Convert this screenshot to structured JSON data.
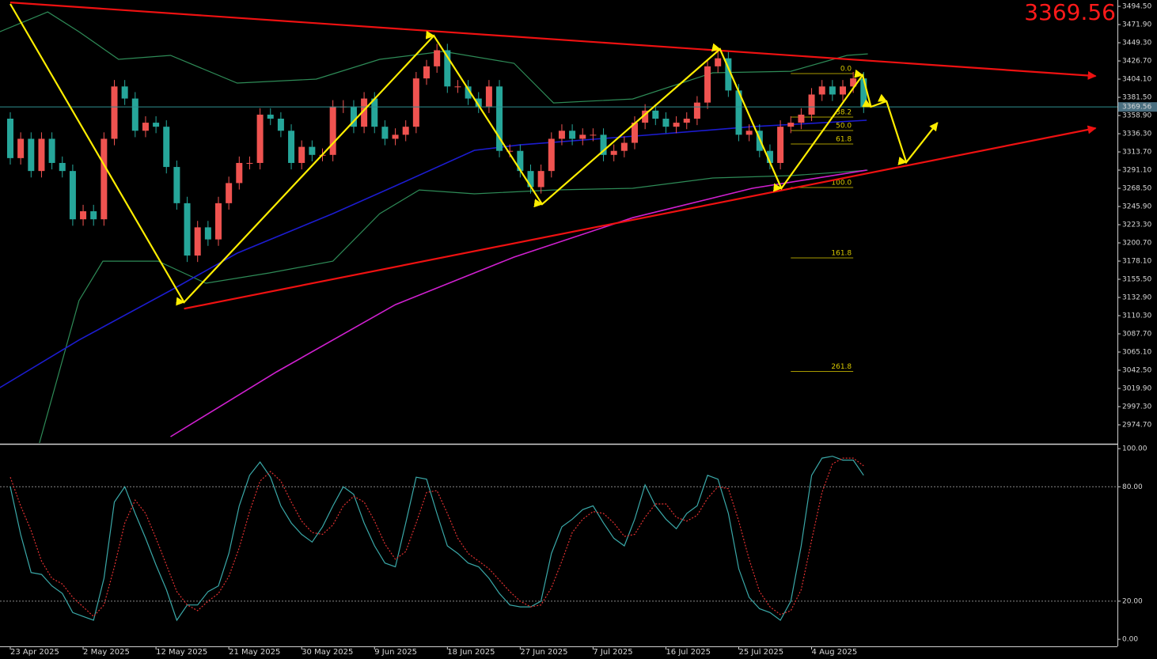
{
  "chart_data": {
    "type": "candlestick",
    "categories": [
      "23 Apr 2025",
      null,
      null,
      null,
      null,
      null,
      null,
      "2 May 2025",
      null,
      null,
      null,
      null,
      null,
      null,
      "12 May 2025",
      null,
      null,
      null,
      null,
      null,
      null,
      "21 May 2025",
      null,
      null,
      null,
      null,
      null,
      null,
      "30 May 2025",
      null,
      null,
      null,
      null,
      null,
      null,
      "9 Jun 2025",
      null,
      null,
      null,
      null,
      null,
      null,
      "18 Jun 2025",
      null,
      null,
      null,
      null,
      null,
      null,
      "27 Jun 2025",
      null,
      null,
      null,
      null,
      null,
      null,
      "7 Jul 2025",
      null,
      null,
      null,
      null,
      null,
      null,
      "16 Jul 2025",
      null,
      null,
      null,
      null,
      null,
      null,
      "25 Jul 2025",
      null,
      null,
      null,
      null,
      null,
      null,
      "4 Aug 2025",
      null,
      null,
      null,
      null,
      null
    ],
    "open": [
      3355,
      3306,
      3330,
      3290,
      3330,
      3300,
      3290,
      3230,
      3240,
      3230,
      3330,
      3395,
      3380,
      3340,
      3350,
      3345,
      3295,
      3250,
      3185,
      3220,
      3205,
      3250,
      3275,
      3300,
      3300,
      3360,
      3355,
      3340,
      3300,
      3320,
      3310,
      3310,
      3370,
      3370,
      3345,
      3380,
      3345,
      3330,
      3335,
      3345,
      3405,
      3420,
      3440,
      3395,
      3395,
      3380,
      3370,
      3395,
      3315,
      3315,
      3290,
      3270,
      3290,
      3330,
      3340,
      3330,
      3335,
      3335,
      3310,
      3315,
      3325,
      3350,
      3365,
      3355,
      3345,
      3350,
      3355,
      3375,
      3420,
      3430,
      3390,
      3335,
      3340,
      3315,
      3300,
      3345,
      3350,
      3360,
      3385,
      3395,
      3385,
      3395,
      3405
    ],
    "high": [
      3363,
      3338,
      3338,
      3338,
      3338,
      3308,
      3298,
      3248,
      3248,
      3338,
      3403,
      3403,
      3388,
      3358,
      3358,
      3353,
      3303,
      3258,
      3228,
      3228,
      3258,
      3283,
      3308,
      3308,
      3368,
      3368,
      3363,
      3348,
      3328,
      3328,
      3318,
      3378,
      3378,
      3378,
      3388,
      3388,
      3353,
      3343,
      3353,
      3413,
      3428,
      3448,
      3448,
      3403,
      3403,
      3388,
      3403,
      3403,
      3323,
      3323,
      3298,
      3298,
      3338,
      3348,
      3348,
      3343,
      3343,
      3343,
      3323,
      3333,
      3358,
      3373,
      3373,
      3363,
      3358,
      3363,
      3383,
      3428,
      3438,
      3438,
      3398,
      3348,
      3348,
      3323,
      3353,
      3358,
      3368,
      3393,
      3403,
      3403,
      3403,
      3413,
      3413
    ],
    "low": [
      3298,
      3298,
      3282,
      3282,
      3292,
      3282,
      3222,
      3222,
      3222,
      3222,
      3322,
      3372,
      3332,
      3332,
      3337,
      3287,
      3242,
      3177,
      3177,
      3197,
      3197,
      3242,
      3267,
      3292,
      3292,
      3347,
      3332,
      3292,
      3292,
      3302,
      3302,
      3302,
      3362,
      3337,
      3337,
      3337,
      3322,
      3322,
      3327,
      3337,
      3397,
      3412,
      3387,
      3387,
      3372,
      3362,
      3362,
      3307,
      3307,
      3282,
      3262,
      3262,
      3282,
      3322,
      3322,
      3322,
      3327,
      3302,
      3302,
      3307,
      3317,
      3342,
      3347,
      3337,
      3337,
      3342,
      3347,
      3367,
      3412,
      3382,
      3327,
      3327,
      3307,
      3292,
      3292,
      3337,
      3342,
      3352,
      3377,
      3377,
      3377,
      3387,
      3362
    ],
    "close": [
      3306,
      3330,
      3290,
      3330,
      3300,
      3290,
      3230,
      3240,
      3230,
      3330,
      3395,
      3380,
      3340,
      3350,
      3345,
      3295,
      3250,
      3185,
      3220,
      3205,
      3250,
      3275,
      3300,
      3300,
      3360,
      3355,
      3340,
      3300,
      3320,
      3310,
      3310,
      3370,
      3370,
      3345,
      3380,
      3345,
      3330,
      3335,
      3345,
      3405,
      3420,
      3440,
      3395,
      3395,
      3380,
      3370,
      3395,
      3315,
      3315,
      3290,
      3270,
      3290,
      3330,
      3340,
      3330,
      3335,
      3335,
      3310,
      3315,
      3325,
      3350,
      3365,
      3355,
      3345,
      3350,
      3355,
      3375,
      3420,
      3430,
      3390,
      3335,
      3340,
      3315,
      3300,
      3345,
      3350,
      3360,
      3385,
      3395,
      3385,
      3395,
      3405,
      3370
    ],
    "up_color": "#ef5350",
    "down_color": "#26a69a",
    "ylim": [
      2952.1,
      3502.4
    ],
    "yticks": [
      {
        "value": 3494.5,
        "label": "3494.50"
      },
      {
        "value": 3471.9,
        "label": "3471.90"
      },
      {
        "value": 3449.3,
        "label": "3449.30"
      },
      {
        "value": 3426.7,
        "label": "3426.70"
      },
      {
        "value": 3404.1,
        "label": "3404.10"
      },
      {
        "value": 3381.5,
        "label": "3381.50"
      },
      {
        "value": 3358.9,
        "label": "3358.90"
      },
      {
        "value": 3336.3,
        "label": "3336.30"
      },
      {
        "value": 3313.7,
        "label": "3313.70"
      },
      {
        "value": 3291.1,
        "label": "3291.10"
      },
      {
        "value": 3268.5,
        "label": "3268.50"
      },
      {
        "value": 3245.9,
        "label": "3245.90"
      },
      {
        "value": 3223.3,
        "label": "3223.30"
      },
      {
        "value": 3200.7,
        "label": "3200.70"
      },
      {
        "value": 3178.1,
        "label": "3178.10"
      },
      {
        "value": 3155.5,
        "label": "3155.50"
      },
      {
        "value": 3132.9,
        "label": "3132.90"
      },
      {
        "value": 3110.3,
        "label": "3110.30"
      },
      {
        "value": 3087.7,
        "label": "3087.70"
      },
      {
        "value": 3065.1,
        "label": "3065.10"
      },
      {
        "value": 3042.5,
        "label": "3042.50"
      },
      {
        "value": 3019.9,
        "label": "3019.90"
      },
      {
        "value": 2997.3,
        "label": "2997.30"
      },
      {
        "value": 2974.7,
        "label": "2974.70"
      }
    ],
    "last_price": 3369.56,
    "overlays": [
      {
        "color": "#2e8b57",
        "width": 1.2,
        "x": [
          -1,
          3.6,
          6.6,
          10.4,
          15.4,
          21.8,
          29.4,
          35.5,
          41.6,
          48.4,
          52.2,
          59.8,
          67.5,
          75,
          80.4,
          82.4
        ],
        "values": [
          3463,
          3487.6,
          3463,
          3428.7,
          3433.6,
          3399.2,
          3404.1,
          3428.7,
          3438.5,
          3423.8,
          3374.6,
          3379.5,
          3412,
          3413.9,
          3433.6,
          3435.5
        ]
      },
      {
        "color": "#2e8b57",
        "width": 1.2,
        "x": [
          2.8,
          6.6,
          8.9,
          14.2,
          18.8,
          24.9,
          31,
          35.5,
          39.3,
          44.6,
          52.2,
          59.8,
          67.5,
          75,
          82.4
        ],
        "values": [
          2952.1,
          3129,
          3178,
          3178,
          3150.6,
          3163.4,
          3178,
          3237,
          3266.5,
          3261.6,
          3266.5,
          3268.5,
          3281.3,
          3284.2,
          3291
        ]
      },
      {
        "color": "#1c1cd0",
        "width": 1.6,
        "x": [
          -1,
          6.6,
          15.7,
          21.8,
          31,
          37,
          44.6,
          49,
          60,
          71.3,
          82.3
        ],
        "values": [
          3020.9,
          3080,
          3143.7,
          3187.9,
          3237.1,
          3271.5,
          3315.7,
          3322.5,
          3333.4,
          3345.1,
          3353
        ]
      },
      {
        "color": "#d020d0",
        "width": 1.6,
        "x": [
          15.4,
          25.6,
          37,
          48.4,
          59.8,
          71.3,
          82.3
        ],
        "values": [
          2960,
          3040.5,
          3124,
          3183,
          3232,
          3268.5,
          3291
        ]
      },
      {
        "color": "#ee1111",
        "width": 2.2,
        "arrow": true,
        "x": [
          0,
          104.3
        ],
        "values": [
          3499.4,
          3408
        ]
      },
      {
        "color": "#ee1111",
        "width": 2.2,
        "arrow": true,
        "x": [
          16.7,
          104.3
        ],
        "values": [
          3119,
          3343.2
        ]
      },
      {
        "color": "#ffee00",
        "width": 2.2,
        "arrow": true,
        "x": [
          0,
          16.7,
          40.7,
          51.1,
          68.2,
          74.1,
          81.9,
          82.7,
          84.2,
          86.1,
          89.1
        ],
        "values": [
          3497.5,
          3127,
          3458.1,
          3248.8,
          3441.4,
          3268.5,
          3409,
          3369.7,
          3376.6,
          3300.9,
          3350
        ]
      }
    ],
    "fib": {
      "color": "#a89a00",
      "x": [
        75,
        81
      ],
      "levels": [
        {
          "level": {
            "value": 0,
            "label": "0.0"
          },
          "price": 3411
        },
        {
          "level": 38.2,
          "price": 3357
        },
        {
          "level": {
            "value": 50,
            "label": "50.0"
          },
          "price": 3340.3
        },
        {
          "level": 61.8,
          "price": 3323.6
        },
        {
          "level": {
            "value": 100,
            "label": "100.0"
          },
          "price": 3269.5
        },
        {
          "level": 161.8,
          "price": 3182
        },
        {
          "level": 261.8,
          "price": 3041
        }
      ]
    },
    "oscillator": {
      "type": "line",
      "ylim": [
        -3.7,
        101.7
      ],
      "yticks": [
        {
          "value": 100,
          "label": "100.00"
        },
        {
          "value": 80,
          "label": "80.00"
        },
        {
          "value": 20,
          "label": "20.00"
        },
        {
          "value": 0,
          "label": "0.00"
        }
      ],
      "level_lines": [
        80,
        20
      ],
      "series": [
        {
          "color": "#3aa8a8",
          "dash": false,
          "values": [
            80,
            55,
            35,
            34,
            28,
            24,
            14,
            12,
            10,
            32,
            72,
            80,
            66,
            53,
            39,
            26,
            10,
            18,
            18,
            25,
            28,
            45,
            70,
            86,
            93,
            85,
            70,
            61,
            55,
            51,
            59,
            70,
            80,
            76,
            61,
            49,
            40,
            38,
            61,
            85,
            84,
            66,
            49,
            45,
            40,
            38,
            32,
            24,
            18,
            17,
            17,
            20,
            45,
            59,
            63,
            68,
            70,
            61,
            53,
            49,
            63,
            81,
            70,
            63,
            58,
            66,
            70,
            86,
            84,
            66,
            37,
            22,
            16,
            14,
            10,
            20,
            49,
            86,
            95,
            96,
            94,
            94,
            86
          ]
        },
        {
          "color": "#e03030",
          "dash": true,
          "values": [
            85,
            70,
            57,
            41,
            32,
            29,
            22,
            17,
            12,
            18,
            38,
            61,
            73,
            66,
            53,
            39,
            25,
            18,
            15,
            20,
            24,
            33,
            48,
            67,
            83,
            88,
            83,
            72,
            62,
            56,
            55,
            60,
            70,
            75,
            72,
            62,
            50,
            42,
            46,
            61,
            77,
            78,
            66,
            53,
            45,
            41,
            37,
            31,
            25,
            20,
            17,
            18,
            27,
            41,
            56,
            63,
            67,
            66,
            61,
            54,
            55,
            64,
            71,
            71,
            64,
            62,
            65,
            74,
            80,
            79,
            62,
            42,
            25,
            17,
            13,
            15,
            26,
            52,
            77,
            92,
            95,
            95,
            91
          ]
        }
      ]
    }
  }
}
